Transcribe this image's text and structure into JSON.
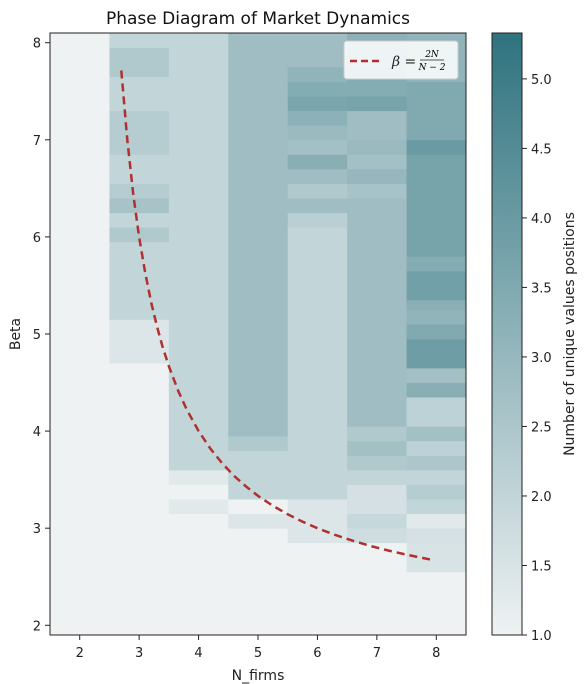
{
  "chart_data": {
    "type": "heatmap",
    "title": "Phase Diagram of Market Dynamics",
    "xlabel": "N_firms",
    "ylabel": "Beta",
    "colorbar_label": "Number of unique values positions",
    "x_categories": [
      2,
      3,
      4,
      5,
      6,
      7,
      8
    ],
    "xlim": [
      1.5,
      8.5
    ],
    "ylim": [
      1.9,
      8.1
    ],
    "x_ticks": [
      2,
      3,
      4,
      5,
      6,
      7,
      8
    ],
    "y_ticks": [
      2,
      3,
      4,
      5,
      6,
      7,
      8
    ],
    "colorbar_range": [
      1.0,
      5.33
    ],
    "colorbar_ticks": [
      "1.0",
      "1.5",
      "2.0",
      "2.5",
      "3.0",
      "3.5",
      "4.0",
      "4.5",
      "5.0"
    ],
    "colormap": {
      "low": "#eef2f3",
      "high": "#2f737f"
    },
    "columns": [
      {
        "n": 2,
        "segments": [
          {
            "from": 1.9,
            "to": 8.1,
            "value": 1.0
          }
        ]
      },
      {
        "n": 3,
        "segments": [
          {
            "from": 1.9,
            "to": 4.7,
            "value": 1.0
          },
          {
            "from": 4.7,
            "to": 5.15,
            "value": 1.4
          },
          {
            "from": 5.15,
            "to": 5.95,
            "value": 2.0
          },
          {
            "from": 5.95,
            "to": 6.1,
            "value": 2.4
          },
          {
            "from": 6.1,
            "to": 6.25,
            "value": 2.0
          },
          {
            "from": 6.25,
            "to": 6.4,
            "value": 2.6
          },
          {
            "from": 6.4,
            "to": 6.55,
            "value": 2.3
          },
          {
            "from": 6.55,
            "to": 6.85,
            "value": 2.0
          },
          {
            "from": 6.85,
            "to": 7.3,
            "value": 2.3
          },
          {
            "from": 7.3,
            "to": 7.65,
            "value": 2.0
          },
          {
            "from": 7.65,
            "to": 7.95,
            "value": 2.4
          },
          {
            "from": 7.95,
            "to": 8.1,
            "value": 2.0
          }
        ]
      },
      {
        "n": 4,
        "segments": [
          {
            "from": 1.9,
            "to": 3.15,
            "value": 1.0
          },
          {
            "from": 3.15,
            "to": 3.3,
            "value": 1.3
          },
          {
            "from": 3.3,
            "to": 3.45,
            "value": 1.0
          },
          {
            "from": 3.45,
            "to": 3.6,
            "value": 1.3
          },
          {
            "from": 3.6,
            "to": 8.1,
            "value": 2.0
          }
        ]
      },
      {
        "n": 5,
        "segments": [
          {
            "from": 1.9,
            "to": 3.0,
            "value": 1.0
          },
          {
            "from": 3.0,
            "to": 3.15,
            "value": 1.4
          },
          {
            "from": 3.15,
            "to": 3.3,
            "value": 1.0
          },
          {
            "from": 3.3,
            "to": 3.8,
            "value": 2.0
          },
          {
            "from": 3.8,
            "to": 3.95,
            "value": 2.4
          },
          {
            "from": 3.95,
            "to": 8.1,
            "value": 2.8
          }
        ]
      },
      {
        "n": 6,
        "segments": [
          {
            "from": 1.9,
            "to": 2.85,
            "value": 1.0
          },
          {
            "from": 2.85,
            "to": 3.3,
            "value": 1.4
          },
          {
            "from": 3.3,
            "to": 6.1,
            "value": 2.0
          },
          {
            "from": 6.1,
            "to": 6.25,
            "value": 2.2
          },
          {
            "from": 6.25,
            "to": 6.4,
            "value": 2.8
          },
          {
            "from": 6.4,
            "to": 6.55,
            "value": 2.4
          },
          {
            "from": 6.55,
            "to": 6.7,
            "value": 2.8
          },
          {
            "from": 6.7,
            "to": 6.85,
            "value": 3.3
          },
          {
            "from": 6.85,
            "to": 7.0,
            "value": 2.7
          },
          {
            "from": 7.0,
            "to": 7.15,
            "value": 2.9
          },
          {
            "from": 7.15,
            "to": 7.3,
            "value": 3.2
          },
          {
            "from": 7.3,
            "to": 7.45,
            "value": 3.6
          },
          {
            "from": 7.45,
            "to": 7.6,
            "value": 3.4
          },
          {
            "from": 7.6,
            "to": 7.75,
            "value": 3.1
          },
          {
            "from": 7.75,
            "to": 8.1,
            "value": 2.8
          }
        ]
      },
      {
        "n": 7,
        "segments": [
          {
            "from": 1.9,
            "to": 2.85,
            "value": 1.0
          },
          {
            "from": 2.85,
            "to": 3.0,
            "value": 1.7
          },
          {
            "from": 3.0,
            "to": 3.15,
            "value": 1.9
          },
          {
            "from": 3.15,
            "to": 3.45,
            "value": 1.6
          },
          {
            "from": 3.45,
            "to": 3.6,
            "value": 2.0
          },
          {
            "from": 3.6,
            "to": 3.75,
            "value": 2.4
          },
          {
            "from": 3.75,
            "to": 3.9,
            "value": 2.7
          },
          {
            "from": 3.9,
            "to": 4.05,
            "value": 2.4
          },
          {
            "from": 4.05,
            "to": 6.4,
            "value": 2.8
          },
          {
            "from": 6.4,
            "to": 6.55,
            "value": 2.6
          },
          {
            "from": 6.55,
            "to": 6.7,
            "value": 3.0
          },
          {
            "from": 6.7,
            "to": 6.85,
            "value": 2.7
          },
          {
            "from": 6.85,
            "to": 7.0,
            "value": 2.9
          },
          {
            "from": 7.0,
            "to": 7.3,
            "value": 2.8
          },
          {
            "from": 7.3,
            "to": 7.45,
            "value": 3.7
          },
          {
            "from": 7.45,
            "to": 7.75,
            "value": 3.4
          },
          {
            "from": 7.75,
            "to": 8.1,
            "value": 3.2
          }
        ]
      },
      {
        "n": 8,
        "segments": [
          {
            "from": 1.9,
            "to": 2.55,
            "value": 1.0
          },
          {
            "from": 2.55,
            "to": 2.85,
            "value": 1.5
          },
          {
            "from": 2.85,
            "to": 3.0,
            "value": 1.6
          },
          {
            "from": 3.0,
            "to": 3.15,
            "value": 1.3
          },
          {
            "from": 3.15,
            "to": 3.3,
            "value": 2.0
          },
          {
            "from": 3.3,
            "to": 3.45,
            "value": 2.3
          },
          {
            "from": 3.45,
            "to": 3.6,
            "value": 2.0
          },
          {
            "from": 3.6,
            "to": 3.75,
            "value": 2.5
          },
          {
            "from": 3.75,
            "to": 3.9,
            "value": 2.1
          },
          {
            "from": 3.9,
            "to": 4.05,
            "value": 2.7
          },
          {
            "from": 4.05,
            "to": 4.35,
            "value": 2.1
          },
          {
            "from": 4.35,
            "to": 4.5,
            "value": 3.3
          },
          {
            "from": 4.5,
            "to": 4.65,
            "value": 2.7
          },
          {
            "from": 4.65,
            "to": 4.95,
            "value": 3.9
          },
          {
            "from": 4.95,
            "to": 5.1,
            "value": 3.5
          },
          {
            "from": 5.1,
            "to": 5.25,
            "value": 3.1
          },
          {
            "from": 5.25,
            "to": 5.35,
            "value": 3.3
          },
          {
            "from": 5.35,
            "to": 5.65,
            "value": 3.8
          },
          {
            "from": 5.65,
            "to": 5.8,
            "value": 3.4
          },
          {
            "from": 5.8,
            "to": 6.85,
            "value": 3.7
          },
          {
            "from": 6.85,
            "to": 7.0,
            "value": 4.0
          },
          {
            "from": 7.0,
            "to": 7.6,
            "value": 3.5
          },
          {
            "from": 7.6,
            "to": 8.1,
            "value": 3.1
          }
        ]
      }
    ],
    "overlay_curve": {
      "name": "β = 2N/(N−2)",
      "style": "dashed",
      "color": "#b03030",
      "points": [
        [
          2.7,
          7.714
        ],
        [
          2.8,
          7.0
        ],
        [
          2.9,
          6.444
        ],
        [
          3.0,
          6.0
        ],
        [
          3.1,
          5.636
        ],
        [
          3.2,
          5.333
        ],
        [
          3.3,
          5.077
        ],
        [
          3.4,
          4.857
        ],
        [
          3.5,
          4.667
        ],
        [
          3.65,
          4.424
        ],
        [
          3.8,
          4.222
        ],
        [
          4.0,
          4.0
        ],
        [
          4.2,
          3.818
        ],
        [
          4.4,
          3.667
        ],
        [
          4.6,
          3.538
        ],
        [
          4.8,
          3.429
        ],
        [
          5.0,
          3.333
        ],
        [
          5.25,
          3.231
        ],
        [
          5.5,
          3.143
        ],
        [
          5.75,
          3.067
        ],
        [
          6.0,
          3.0
        ],
        [
          6.3,
          2.93
        ],
        [
          6.6,
          2.87
        ],
        [
          6.9,
          2.816
        ],
        [
          7.2,
          2.769
        ],
        [
          7.5,
          2.727
        ],
        [
          7.9,
          2.678
        ]
      ]
    },
    "legend": {
      "position": "top-right"
    }
  }
}
